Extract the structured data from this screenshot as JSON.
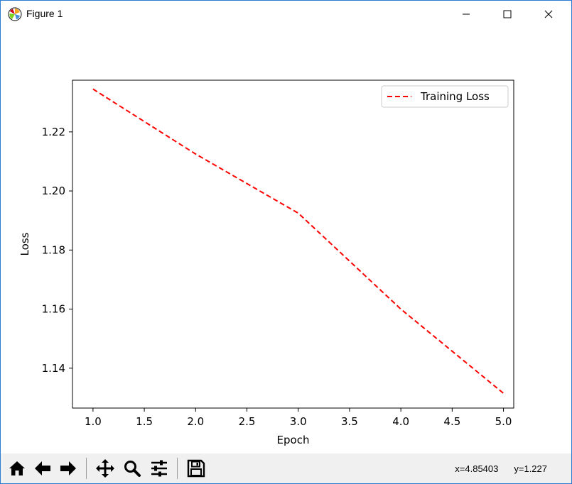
{
  "window": {
    "title": "Figure 1",
    "controls": {
      "minimize_icon": "minimize-icon",
      "maximize_icon": "maximize-icon",
      "close_icon": "close-icon"
    }
  },
  "toolbar": {
    "buttons": [
      {
        "name": "home",
        "icon": "home-icon"
      },
      {
        "name": "back",
        "icon": "back-arrow-icon"
      },
      {
        "name": "forward",
        "icon": "forward-arrow-icon"
      },
      {
        "name": "pan",
        "icon": "pan-icon"
      },
      {
        "name": "zoom",
        "icon": "zoom-icon"
      },
      {
        "name": "configure-subplots",
        "icon": "sliders-icon"
      },
      {
        "name": "save",
        "icon": "save-icon"
      }
    ],
    "x_readout": "x=4.85403",
    "y_readout": "y=1.227"
  },
  "chart_data": {
    "type": "line",
    "title": "",
    "xlabel": "Epoch",
    "ylabel": "Loss",
    "xlim": [
      0.8,
      5.1
    ],
    "ylim": [
      1.1265,
      1.2375
    ],
    "xticks": [
      "1.0",
      "1.5",
      "2.0",
      "2.5",
      "3.0",
      "3.5",
      "4.0",
      "4.5",
      "5.0"
    ],
    "yticks": [
      "1.14",
      "1.16",
      "1.18",
      "1.20",
      "1.22"
    ],
    "grid": false,
    "legend": "top-right",
    "x": [
      1,
      2,
      3,
      4,
      5
    ],
    "series": [
      {
        "name": "Training Loss",
        "values": [
          1.2345,
          1.2125,
          1.1925,
          1.16,
          1.1315
        ],
        "color": "#ff0000",
        "linestyle": "dashed"
      }
    ]
  }
}
